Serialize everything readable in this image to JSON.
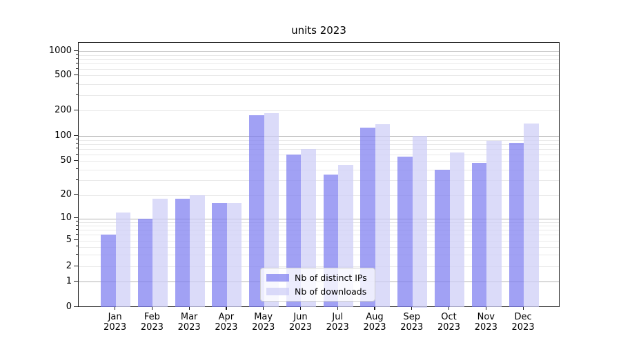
{
  "title": "units 2023",
  "chart_data": {
    "type": "bar",
    "title": "units 2023",
    "categories": [
      "Jan",
      "Feb",
      "Mar",
      "Apr",
      "May",
      "Jun",
      "Jul",
      "Aug",
      "Sep",
      "Oct",
      "Nov",
      "Dec"
    ],
    "category_year": "2023",
    "series": [
      {
        "name": "Nb of distinct IPs",
        "color": "#7d7df0",
        "values": [
          6,
          10,
          18,
          16,
          175,
          60,
          35,
          125,
          57,
          40,
          48,
          83
        ]
      },
      {
        "name": "Nb of downloads",
        "color": "#cdcdf7",
        "values": [
          12,
          18,
          20,
          16,
          185,
          70,
          45,
          138,
          100,
          63,
          87,
          140
        ]
      }
    ],
    "yscale": "symlog",
    "yticks": [
      0,
      1,
      2,
      5,
      10,
      20,
      50,
      100,
      200,
      500,
      1000
    ],
    "ylim": [
      0,
      1300
    ],
    "grid": "on",
    "legend_position": "lower center",
    "colors": {
      "major_gridline": "#b0b0b0",
      "decade_top_gridline": "#c6c6c6",
      "minor_gridline": "#e8e8e8",
      "spine": "#1a1a1a"
    }
  }
}
